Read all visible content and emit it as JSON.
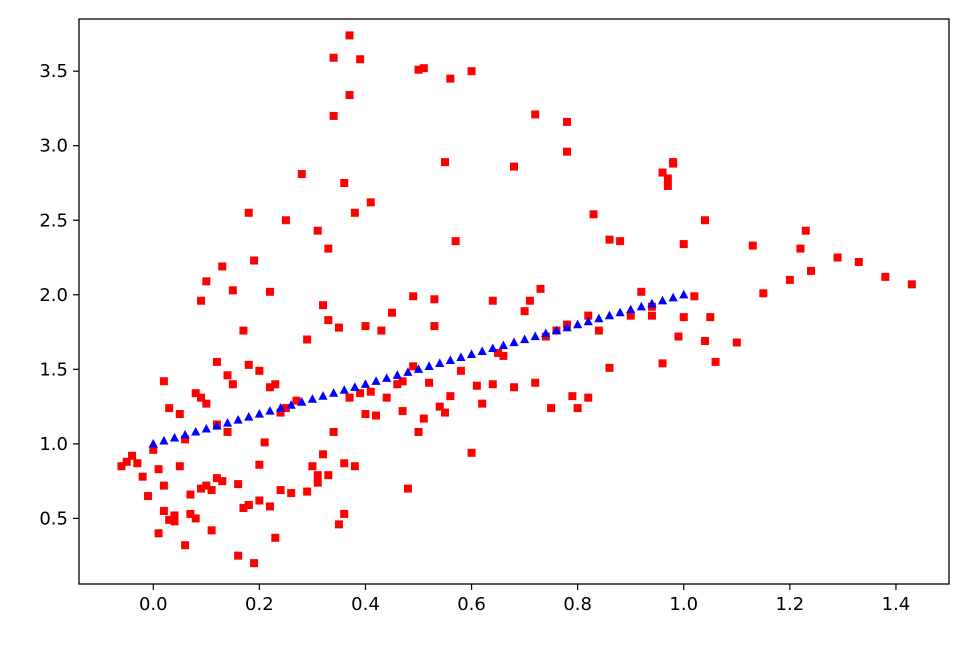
{
  "chart_data": {
    "type": "scatter",
    "title": "",
    "xlabel": "",
    "ylabel": "",
    "xlim": [
      -0.14,
      1.5
    ],
    "ylim": [
      0.06,
      3.85
    ],
    "x_ticks": [
      {
        "value": 0.0,
        "label": "0.0"
      },
      {
        "value": 0.2,
        "label": "0.2"
      },
      {
        "value": 0.4,
        "label": "0.4"
      },
      {
        "value": 0.6,
        "label": "0.6"
      },
      {
        "value": 0.8,
        "label": "0.8"
      },
      {
        "value": 1.0,
        "label": "1.0"
      },
      {
        "value": 1.2,
        "label": "1.2"
      },
      {
        "value": 1.4,
        "label": "1.4"
      }
    ],
    "y_ticks": [
      {
        "value": 0.5,
        "label": "0.5"
      },
      {
        "value": 1.0,
        "label": "1.0"
      },
      {
        "value": 1.5,
        "label": "1.5"
      },
      {
        "value": 2.0,
        "label": "2.0"
      },
      {
        "value": 2.5,
        "label": "2.5"
      },
      {
        "value": 3.0,
        "label": "3.0"
      },
      {
        "value": 3.5,
        "label": "3.5"
      }
    ],
    "grid": false,
    "series": [
      {
        "marker": "square",
        "color": "#ff0000",
        "x": [
          -0.06,
          -0.05,
          -0.04,
          -0.03,
          -0.02,
          -0.01,
          0.0,
          0.01,
          0.02,
          0.02,
          0.03,
          0.04,
          0.05,
          0.06,
          0.07,
          0.08,
          0.09,
          0.1,
          0.11,
          0.12,
          0.13,
          0.14,
          0.15,
          0.16,
          0.17,
          0.18,
          0.19,
          0.2,
          0.21,
          0.22,
          0.23,
          0.24,
          0.02,
          0.05,
          0.08,
          0.1,
          0.12,
          0.03,
          0.06,
          0.09,
          0.01,
          0.04,
          0.07,
          0.11,
          0.14,
          0.16,
          0.18,
          0.2,
          0.22,
          0.24,
          0.25,
          0.27,
          0.29,
          0.3,
          0.31,
          0.32,
          0.33,
          0.34,
          0.35,
          0.36,
          0.37,
          0.38,
          0.39,
          0.4,
          0.42,
          0.44,
          0.46,
          0.48,
          0.5,
          0.52,
          0.54,
          0.56,
          0.58,
          0.6,
          0.62,
          0.64,
          0.66,
          0.68,
          0.7,
          0.72,
          0.74,
          0.76,
          0.78,
          0.8,
          0.82,
          0.84,
          0.86,
          0.88,
          0.9,
          0.92,
          0.94,
          0.96,
          0.98,
          1.0,
          1.02,
          1.04,
          1.06,
          1.1,
          1.13,
          1.15,
          1.2,
          1.23,
          1.29,
          1.33,
          1.38,
          1.43,
          0.34,
          0.37,
          0.39,
          0.5,
          0.56,
          0.6,
          0.72,
          0.78,
          0.37,
          0.34,
          0.28,
          0.19,
          0.13,
          0.1,
          0.09,
          0.15,
          0.18,
          0.22,
          0.25,
          0.31,
          0.32,
          0.33,
          0.36,
          0.38,
          0.41,
          0.45,
          0.49,
          0.51,
          0.53,
          0.55,
          0.57,
          0.64,
          0.68,
          0.73,
          0.78,
          0.83,
          0.86,
          0.97,
          1.0,
          0.96,
          0.98,
          0.94,
          0.97,
          0.99,
          1.04,
          1.05,
          1.22,
          1.24,
          0.12,
          0.17,
          0.2,
          0.23,
          0.29,
          0.33,
          0.35,
          0.41,
          0.43,
          0.47,
          0.49,
          0.51,
          0.55,
          0.61,
          0.65,
          0.71,
          0.75,
          0.79,
          0.82,
          0.18,
          0.26,
          0.31,
          0.36,
          0.4,
          0.47,
          0.53
        ],
        "y": [
          0.85,
          0.88,
          0.92,
          0.87,
          0.78,
          0.65,
          0.96,
          0.83,
          0.72,
          0.55,
          0.49,
          0.52,
          0.85,
          0.32,
          0.66,
          0.5,
          0.7,
          0.72,
          0.42,
          0.77,
          0.75,
          1.08,
          1.4,
          0.25,
          0.57,
          0.59,
          0.2,
          0.62,
          1.01,
          0.58,
          0.37,
          0.69,
          1.42,
          1.2,
          1.34,
          1.27,
          1.13,
          1.24,
          1.03,
          1.31,
          0.4,
          0.48,
          0.53,
          0.69,
          1.46,
          0.73,
          1.53,
          0.86,
          1.38,
          1.21,
          1.24,
          1.29,
          0.68,
          0.85,
          0.74,
          0.93,
          0.79,
          1.08,
          0.46,
          0.87,
          1.31,
          0.85,
          1.34,
          1.79,
          1.19,
          1.31,
          1.4,
          0.7,
          1.08,
          1.41,
          1.25,
          1.32,
          1.49,
          0.94,
          1.27,
          1.4,
          1.59,
          1.38,
          1.89,
          1.41,
          1.72,
          1.76,
          1.8,
          1.24,
          1.86,
          1.76,
          1.51,
          2.36,
          1.86,
          2.02,
          1.92,
          1.54,
          2.88,
          1.85,
          1.99,
          1.69,
          1.55,
          1.68,
          2.33,
          2.01,
          2.1,
          2.43,
          2.25,
          2.22,
          2.12,
          2.07,
          3.59,
          3.74,
          3.58,
          3.51,
          3.45,
          3.5,
          3.21,
          3.16,
          3.34,
          3.2,
          2.81,
          2.23,
          2.19,
          2.09,
          1.96,
          2.03,
          2.55,
          2.02,
          2.5,
          2.43,
          1.93,
          2.31,
          2.75,
          2.55,
          2.62,
          1.88,
          1.99,
          3.52,
          1.97,
          2.89,
          2.36,
          1.96,
          2.86,
          2.04,
          2.96,
          2.54,
          2.37,
          2.73,
          2.34,
          2.82,
          2.89,
          1.86,
          2.78,
          1.72,
          2.5,
          1.85,
          2.31,
          2.16,
          1.55,
          1.76,
          1.49,
          1.4,
          1.7,
          1.83,
          1.78,
          1.35,
          1.76,
          1.42,
          1.52,
          1.17,
          1.21,
          1.39,
          1.61,
          1.96,
          1.24,
          1.32,
          1.31,
          0.59,
          0.67,
          0.79,
          0.53,
          1.2,
          1.22,
          1.79
        ]
      },
      {
        "marker": "triangle",
        "color": "#0000ff",
        "x": [
          0.0,
          0.02,
          0.04,
          0.06,
          0.08,
          0.1,
          0.12,
          0.14,
          0.16,
          0.18,
          0.2,
          0.22,
          0.24,
          0.26,
          0.28,
          0.3,
          0.32,
          0.34,
          0.36,
          0.38,
          0.4,
          0.42,
          0.44,
          0.46,
          0.48,
          0.5,
          0.52,
          0.54,
          0.56,
          0.58,
          0.6,
          0.62,
          0.64,
          0.66,
          0.68,
          0.7,
          0.72,
          0.74,
          0.76,
          0.78,
          0.8,
          0.82,
          0.84,
          0.86,
          0.88,
          0.9,
          0.92,
          0.94,
          0.96,
          0.98,
          1.0
        ],
        "y": [
          1.0,
          1.02,
          1.04,
          1.06,
          1.08,
          1.1,
          1.12,
          1.14,
          1.16,
          1.18,
          1.2,
          1.22,
          1.24,
          1.26,
          1.28,
          1.3,
          1.32,
          1.34,
          1.36,
          1.38,
          1.4,
          1.42,
          1.44,
          1.46,
          1.48,
          1.5,
          1.52,
          1.54,
          1.56,
          1.58,
          1.6,
          1.62,
          1.64,
          1.66,
          1.68,
          1.7,
          1.72,
          1.74,
          1.76,
          1.78,
          1.8,
          1.82,
          1.84,
          1.86,
          1.88,
          1.9,
          1.92,
          1.94,
          1.96,
          1.98,
          2.0
        ]
      }
    ]
  }
}
